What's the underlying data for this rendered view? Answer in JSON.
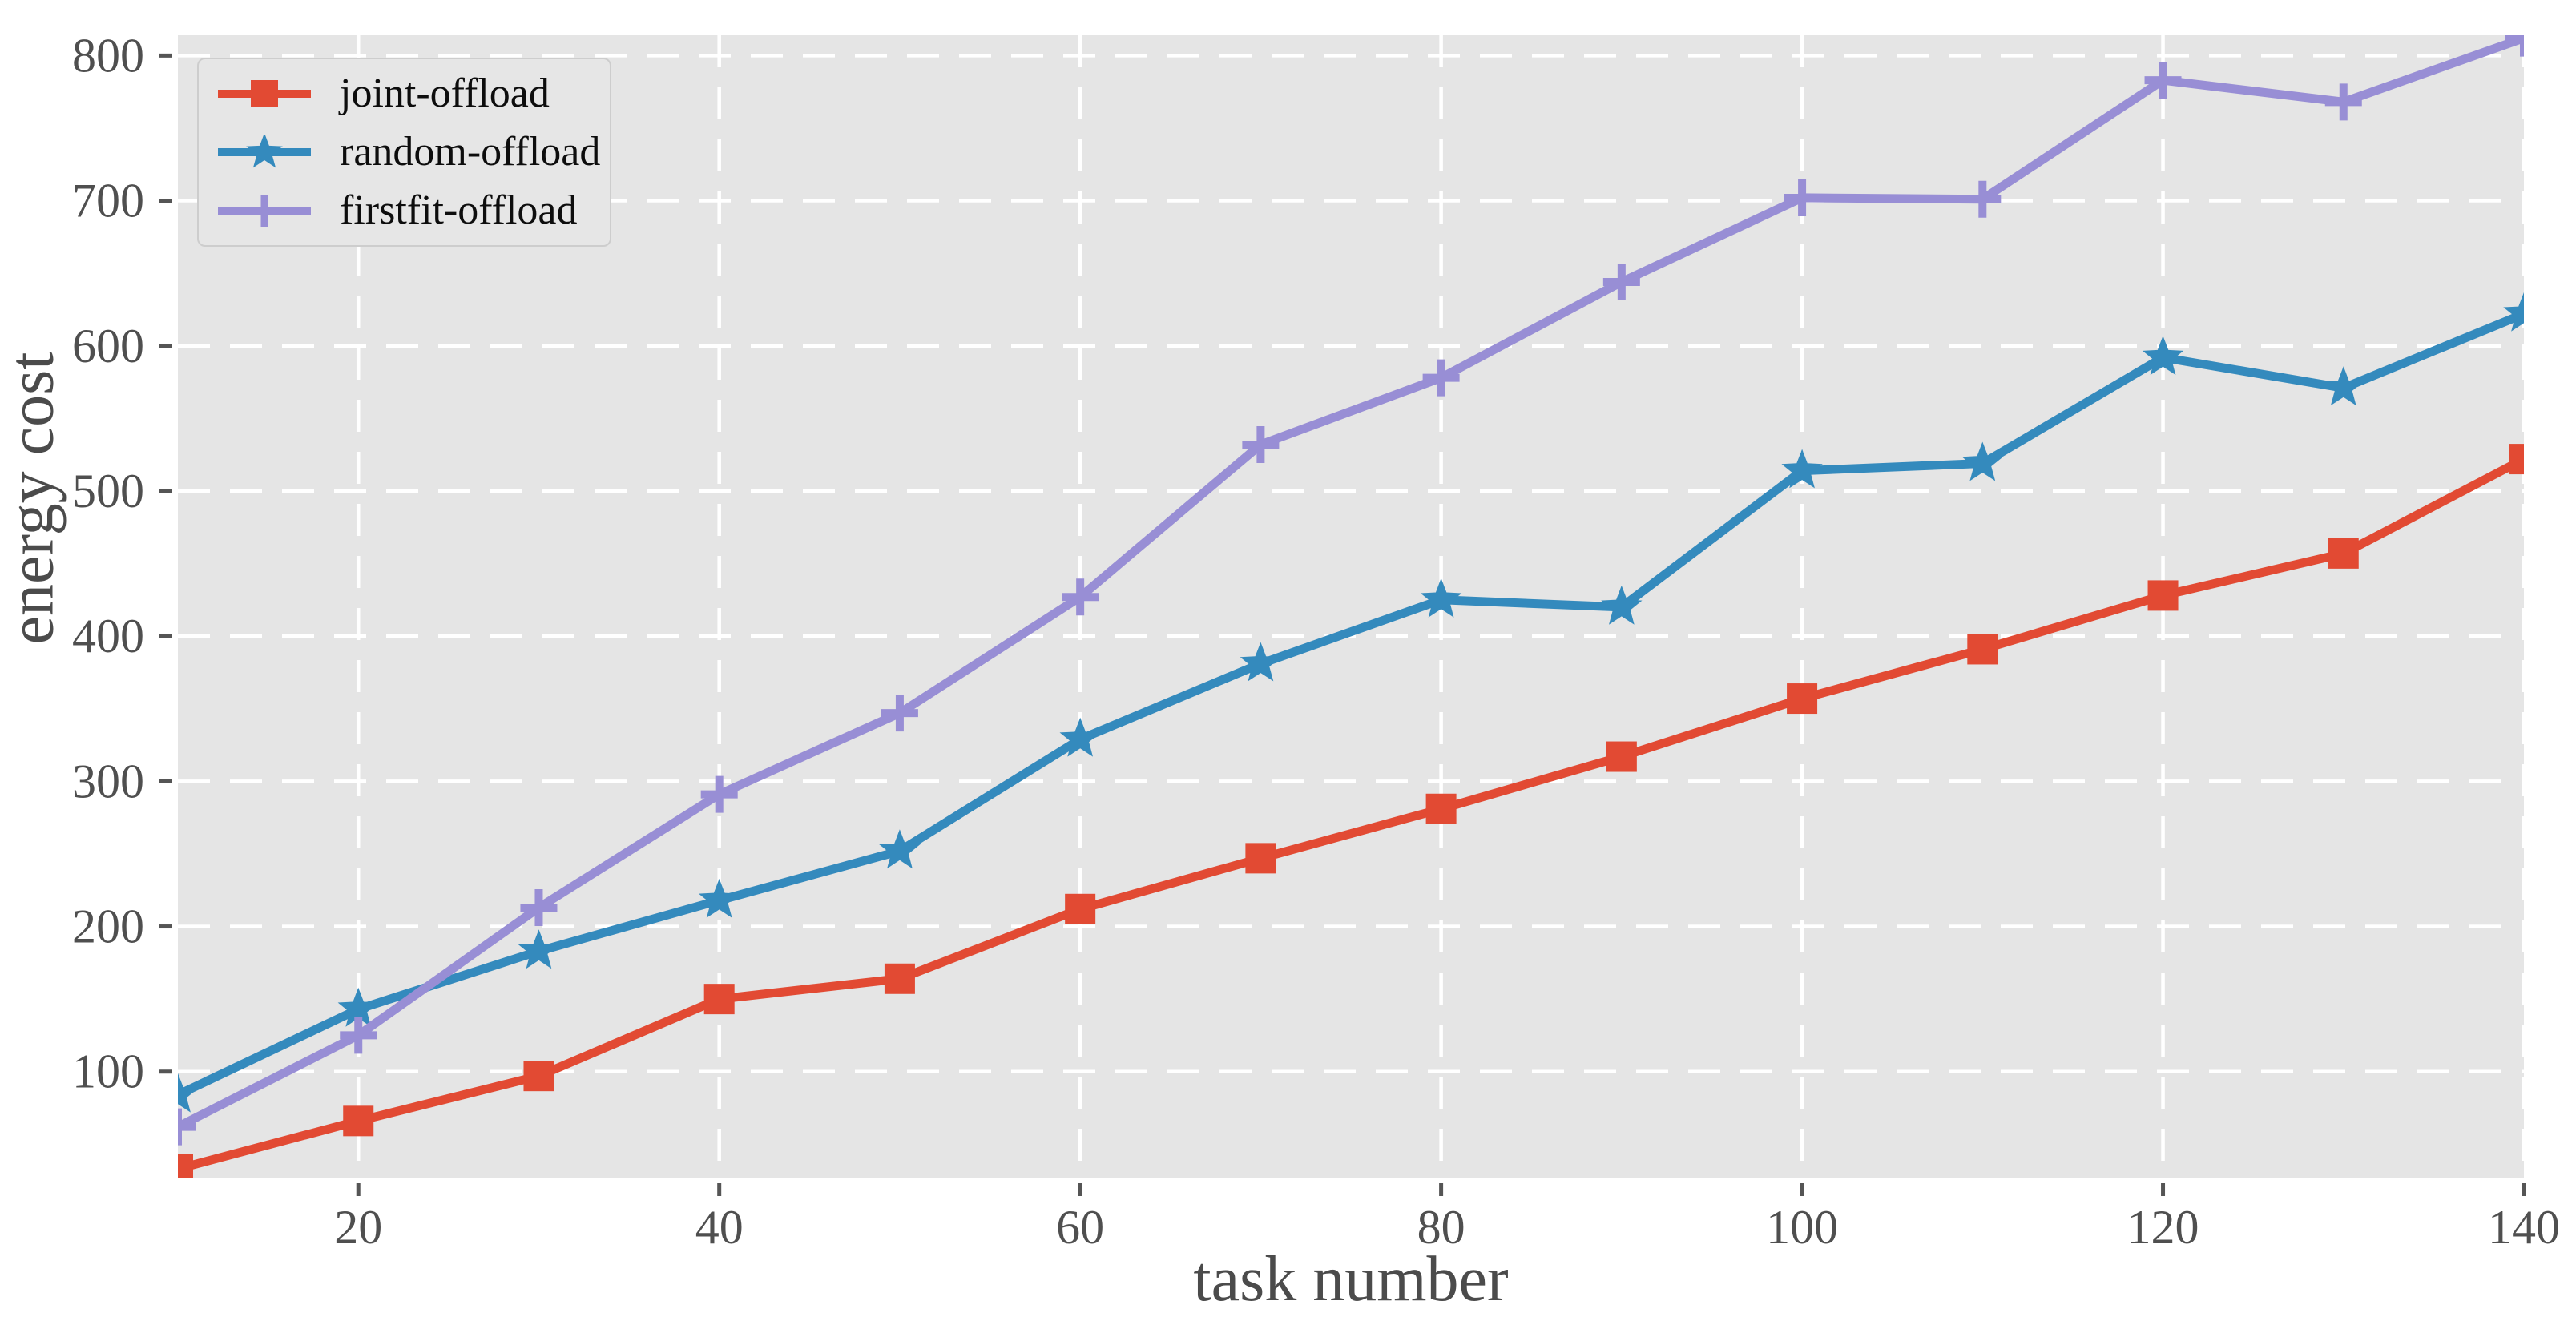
{
  "chart_data": {
    "type": "line",
    "title": "",
    "xlabel": "task number",
    "ylabel": "energy cost",
    "x": [
      10,
      20,
      30,
      40,
      50,
      60,
      70,
      80,
      90,
      100,
      110,
      120,
      130,
      140
    ],
    "series": [
      {
        "name": "joint-offload",
        "color": "#e24a33",
        "marker": "square",
        "values": [
          33,
          66,
          97,
          150,
          164,
          212,
          247,
          281,
          317,
          357,
          391,
          428,
          457,
          522
        ]
      },
      {
        "name": "random-offload",
        "color": "#348abd",
        "marker": "star",
        "values": [
          84,
          143,
          183,
          218,
          252,
          329,
          381,
          425,
          420,
          514,
          519,
          592,
          571,
          622
        ]
      },
      {
        "name": "firstfit-offload",
        "color": "#988ed5",
        "marker": "plus",
        "values": [
          62,
          125,
          213,
          291,
          347,
          427,
          532,
          578,
          644,
          702,
          701,
          783,
          768,
          812
        ]
      }
    ],
    "x_ticks": [
      20,
      40,
      60,
      80,
      100,
      120,
      140
    ],
    "y_ticks": [
      100,
      200,
      300,
      400,
      500,
      600,
      700,
      800
    ],
    "xlim": [
      10,
      140
    ],
    "ylim": [
      27,
      814
    ],
    "grid": "on",
    "grid_style": "white dashed",
    "legend_position": "upper left",
    "plot_background": "#e5e5e5",
    "figure_background": "#ffffff",
    "tick_color": "#555555",
    "tick_label_color": "#4f4f4f",
    "axis_label_color": "#4b4b4b"
  }
}
